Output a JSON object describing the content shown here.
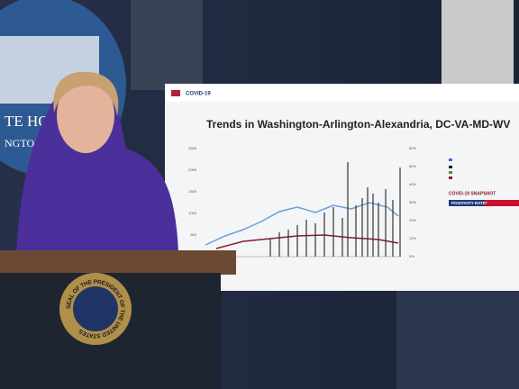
{
  "backdrop": {
    "sign_lines": [
      "TE HO",
      "NGTON"
    ]
  },
  "screen": {
    "header": "COVID-19",
    "title": "Trends in Washington-Arlington-Alexandria, DC-VA-MD-WV",
    "left_ticks": [
      "2500",
      "2000",
      "1500",
      "1000",
      "500",
      "0"
    ],
    "right_ticks": [
      "60%",
      "50%",
      "40%",
      "30%",
      "20%",
      "10%",
      "0%"
    ],
    "snapshot_title": "COVID-19 SNAPSHOT",
    "snapshot_label": "POSITIVITY RATE*"
  },
  "podium": {
    "seal_text": "SEAL OF THE PRESIDENT OF THE UNITED STATES"
  }
}
